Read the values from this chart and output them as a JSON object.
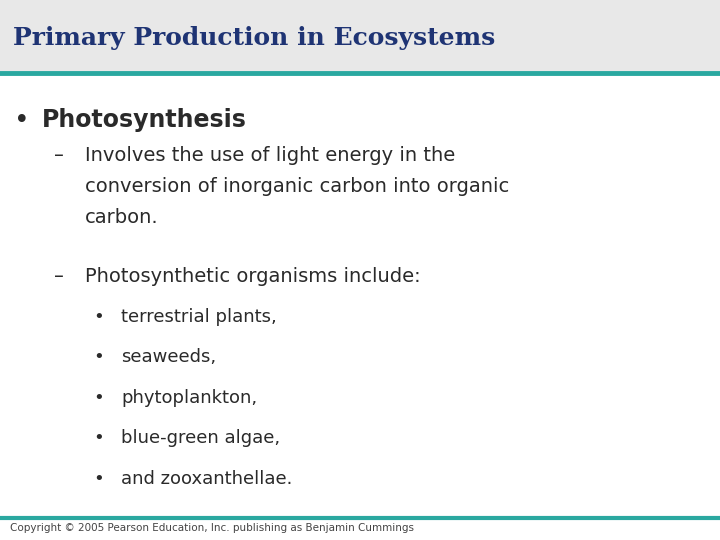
{
  "title": "Primary Production in Ecosystems",
  "title_color": "#1f3474",
  "teal_color": "#2aa8a0",
  "bg_color": "#e8e8e8",
  "content_bg": "#ffffff",
  "copyright": "Copyright © 2005 Pearson Education, Inc. publishing as Benjamin Cummings",
  "bullet1": "Photosynthesis",
  "sub1_line1": "Involves the use of light energy in the",
  "sub1_line2": "conversion of inorganic carbon into organic",
  "sub1_line3": "carbon.",
  "sub2_text": "Photosynthetic organisms include:",
  "sub_items": [
    "terrestrial plants,",
    "seaweeds,",
    "phytoplankton,",
    "blue-green algae,",
    "and zooxanthellae."
  ],
  "title_fontsize": 18,
  "bullet1_fontsize": 17,
  "sub1_fontsize": 14,
  "sub_item_fontsize": 13,
  "copyright_fontsize": 7.5
}
